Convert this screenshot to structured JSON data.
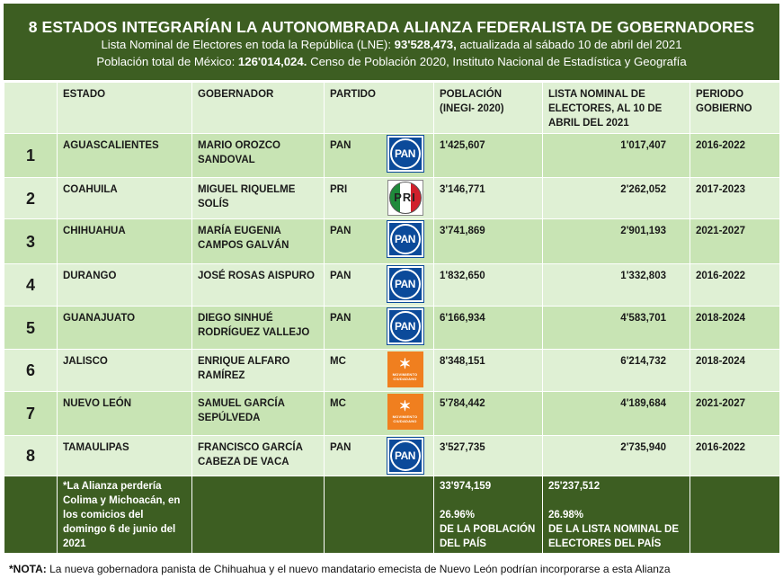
{
  "header": {
    "title": "8 ESTADOS INTEGRARÍAN LA AUTONOMBRADA ALIANZA FEDERALISTA DE GOBERNADORES",
    "lne_prefix": "Lista Nominal de Electores en toda la República (LNE): ",
    "lne_value": "93'528,473,",
    "lne_suffix": " actualizada al sábado 10 de abril del 2021",
    "pop_prefix": "Población total de México: ",
    "pop_value": "126'014,024.",
    "pop_suffix": " Censo de Población 2020, Instituto Nacional de Estadística y Geografía"
  },
  "columns": {
    "estado": "ESTADO",
    "gobernador": "GOBERNADOR",
    "partido": "PARTIDO",
    "poblacion": "POBLACIÓN (INEGI- 2020)",
    "lista": "LISTA NOMINAL DE ELECTORES, AL 10 DE ABRIL DEL 2021",
    "periodo": "PERIODO GOBIERNO"
  },
  "rows": [
    {
      "n": "1",
      "estado": "AGUASCALIENTES",
      "gob": "MARIO OROZCO SANDOVAL",
      "partido": "PAN",
      "logo": "pan-logo",
      "pob": "1'425,607",
      "lista": "1'017,407",
      "periodo": "2016-2022"
    },
    {
      "n": "2",
      "estado": "COAHUILA",
      "gob": "MIGUEL RIQUELME SOLÍS",
      "partido": "PRI",
      "logo": "pri-logo",
      "pob": "3'146,771",
      "lista": "2'262,052",
      "periodo": "2017-2023"
    },
    {
      "n": "3",
      "estado": "CHIHUAHUA",
      "gob": "MARÍA EUGENIA CAMPOS GALVÁN",
      "partido": "PAN",
      "logo": "pan-logo",
      "pob": "3'741,869",
      "lista": "2'901,193",
      "periodo": "2021-2027"
    },
    {
      "n": "4",
      "estado": "DURANGO",
      "gob": "JOSÉ ROSAS AISPURO",
      "partido": "PAN",
      "logo": "pan-logo",
      "pob": "1'832,650",
      "lista": "1'332,803",
      "periodo": "2016-2022"
    },
    {
      "n": "5",
      "estado": "GUANAJUATO",
      "gob": "DIEGO SINHUÉ RODRÍGUEZ VALLEJO",
      "partido": "PAN",
      "logo": "pan-logo",
      "pob": "6'166,934",
      "lista": "4'583,701",
      "periodo": "2018-2024"
    },
    {
      "n": "6",
      "estado": "JALISCO",
      "gob": "ENRIQUE ALFARO RAMÍREZ",
      "partido": "MC",
      "logo": "mc-logo",
      "pob": "8'348,151",
      "lista": "6'214,732",
      "periodo": "2018-2024"
    },
    {
      "n": "7",
      "estado": "NUEVO LEÓN",
      "gob": "SAMUEL GARCÍA SEPÚLVEDA",
      "partido": "MC",
      "logo": "mc-logo",
      "pob": "5'784,442",
      "lista": "4'189,684",
      "periodo": "2021-2027"
    },
    {
      "n": "8",
      "estado": "TAMAULIPAS",
      "gob": "FRANCISCO GARCÍA CABEZA DE VACA",
      "partido": "PAN",
      "logo": "pan-logo",
      "pob": "3'527,735",
      "lista": "2'735,940",
      "periodo": "2016-2022"
    }
  ],
  "logos": {
    "pan_text": "PAN",
    "pri_text": "PRI",
    "mc_text": "MOVIMIENTO CIUDADANO"
  },
  "footer": {
    "alianza_note": "*La Alianza perdería Colima y Michoacán, en los comicios del domingo 6 de junio del 2021",
    "pob_total": "33'974,159",
    "pob_pct": "26.96%",
    "pob_pct_label": "DE LA POBLACIÓN DEL PAÍS",
    "lista_total": "25'237,512",
    "lista_pct": "26.98%",
    "lista_pct_label": "DE LA LISTA NOMINAL DE ELECTORES DEL PAÍS"
  },
  "note": {
    "label": "*NOTA:",
    "text": " La nueva gobernadora panista de Chihuahua y el nuevo mandatario emecista de Nuevo León podrían incorporarse a esta Alianza"
  },
  "colors": {
    "header_green": "#3d5e22",
    "row_dark": "#c8e4b4",
    "row_light": "#dff0d4",
    "pan_blue": "#0b4a9a",
    "mc_orange": "#f07f1f"
  }
}
